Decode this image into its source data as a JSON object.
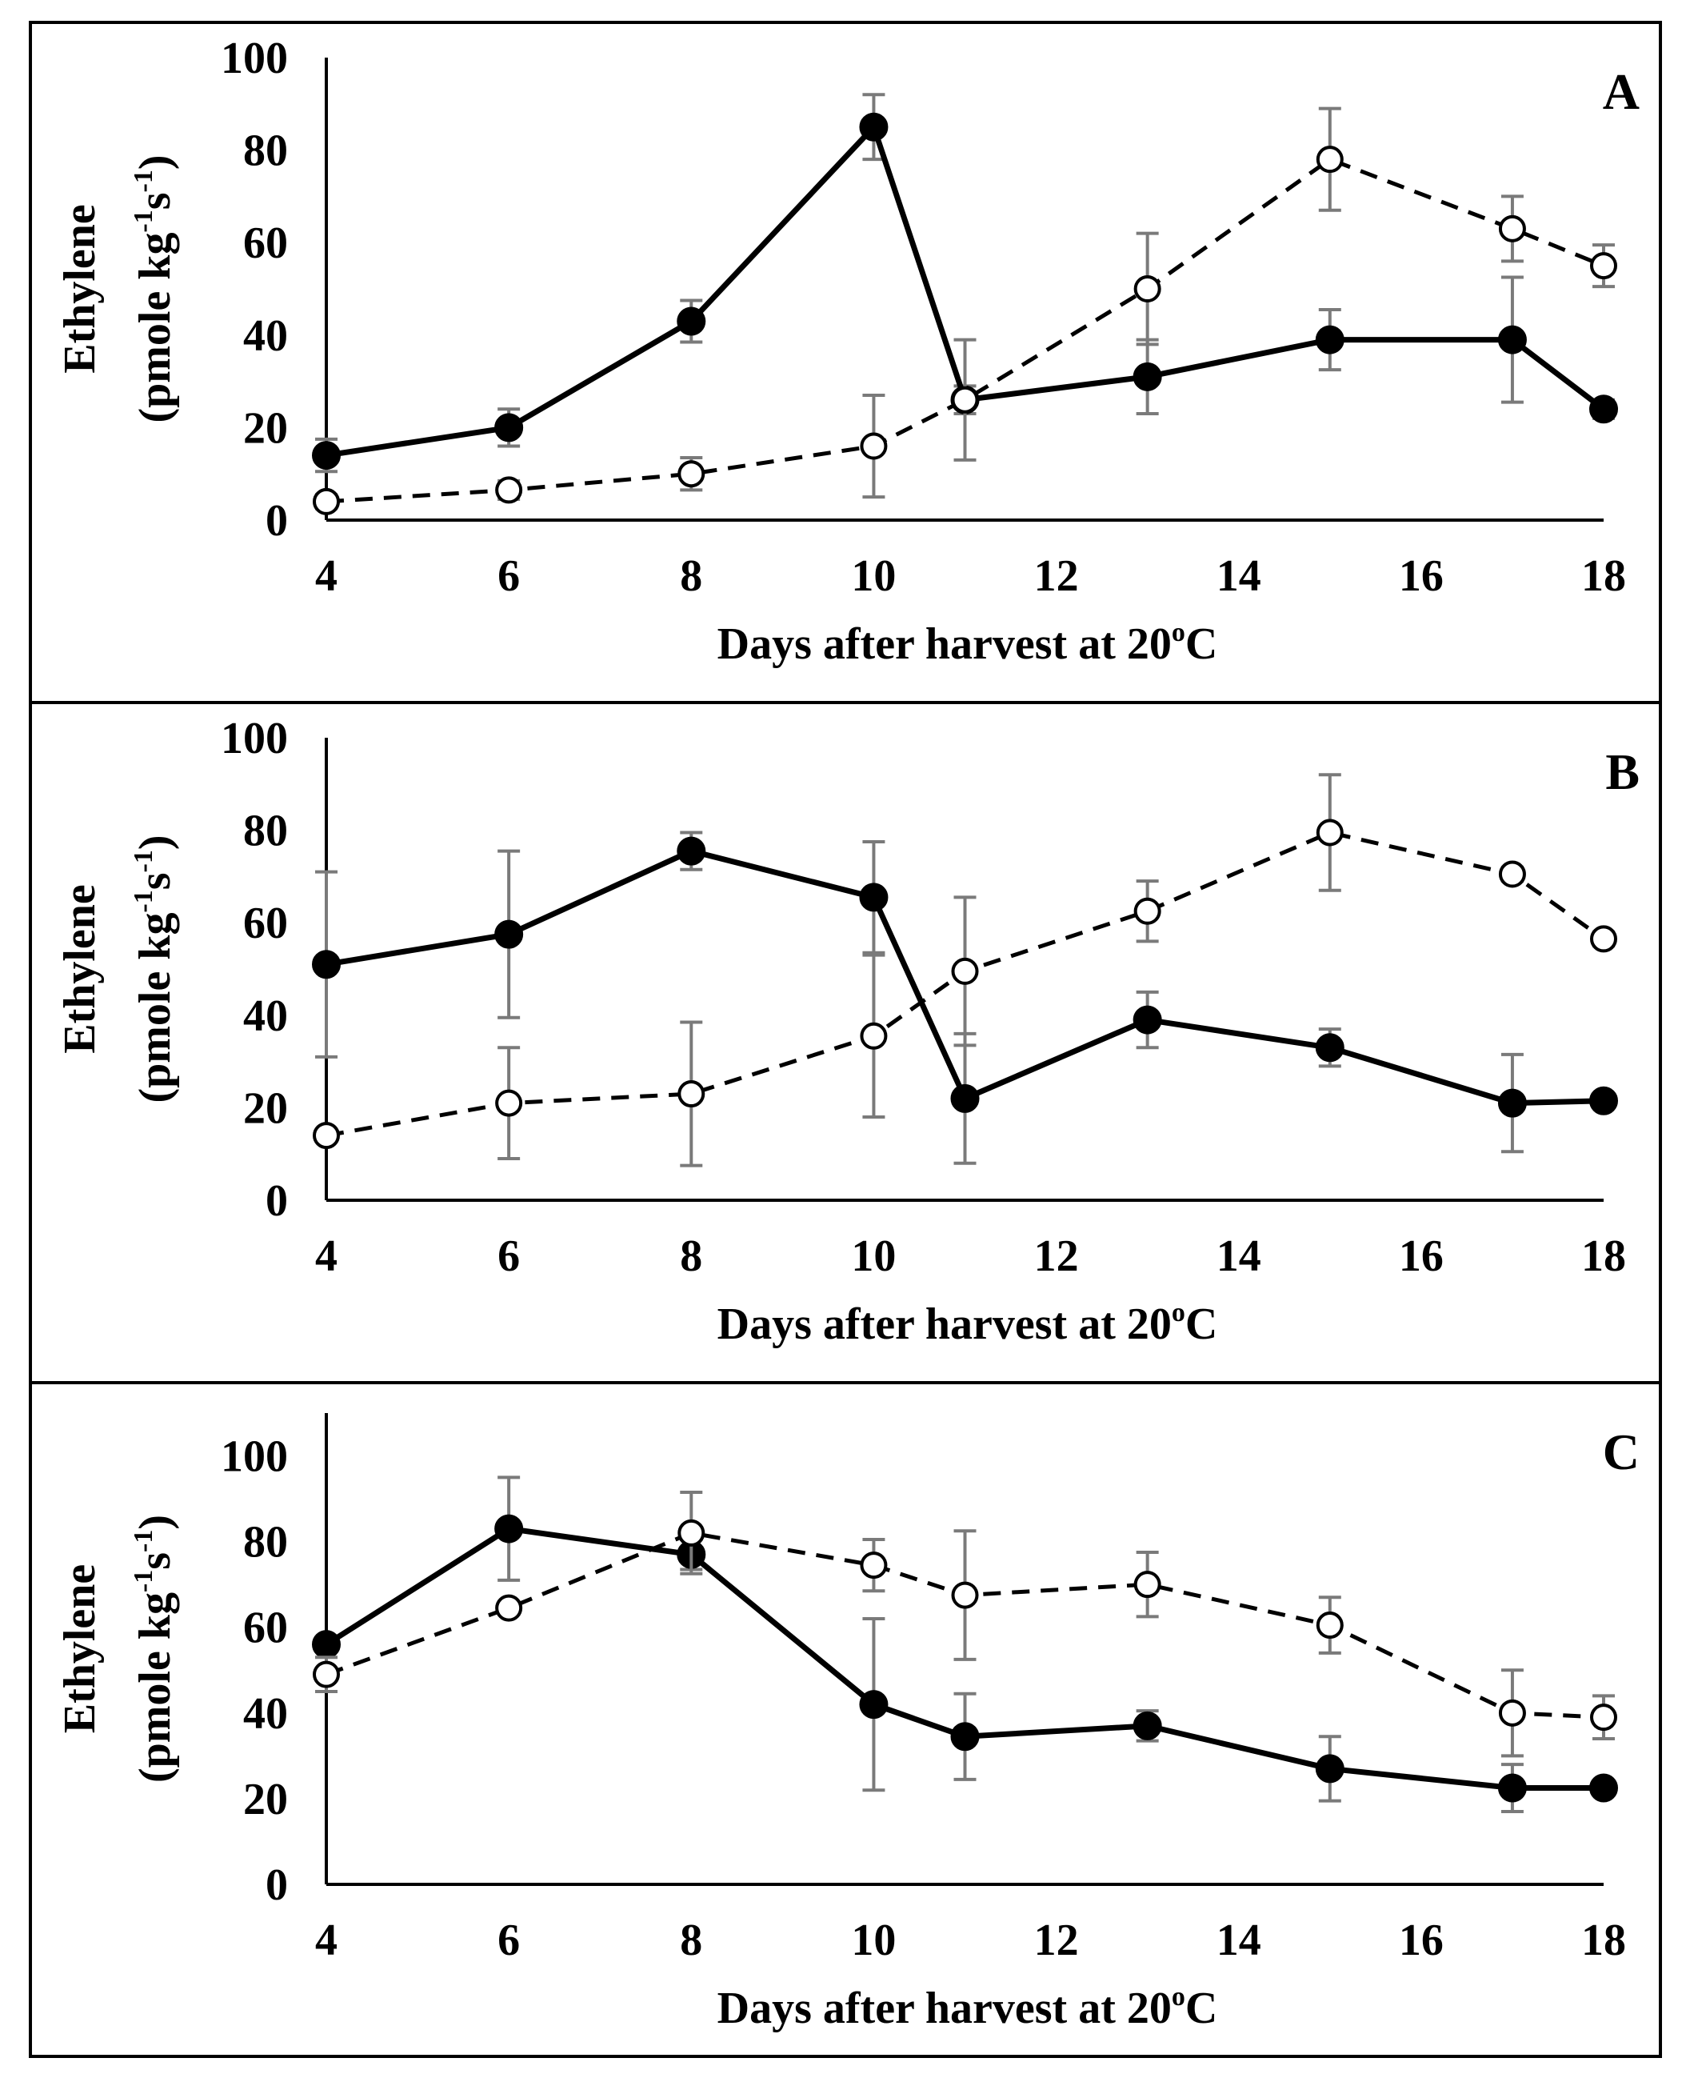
{
  "chart_data": [
    {
      "type": "line",
      "panel": "A",
      "xlabel": "Days after harvest at 20",
      "xlabel_sup": "o",
      "xlabel_tail": "C",
      "ylabel_line1": "Ethylene",
      "ylabel_line2": "(pmole kg-1s-1)",
      "ylabel_parts": [
        "(pmole kg",
        "-1",
        "s",
        "-1",
        ")"
      ],
      "xlim": [
        4,
        18
      ],
      "ylim": [
        0,
        100
      ],
      "xticks": [
        "4",
        "6",
        "8",
        "10",
        "12",
        "14",
        "16",
        "18"
      ],
      "yticks": [
        "0",
        "20",
        "40",
        "60",
        "80",
        "100"
      ],
      "x": [
        4,
        6,
        8,
        10,
        11,
        13,
        15,
        17,
        18
      ],
      "series": [
        {
          "name": "filled",
          "marker": "filled-circle",
          "line": "solid",
          "values": [
            14,
            20,
            43,
            85,
            26,
            31,
            39,
            39,
            24
          ],
          "errors": [
            3.5,
            4,
            4.5,
            7,
            3,
            8,
            6.5,
            13.5,
            2
          ]
        },
        {
          "name": "open",
          "marker": "open-circle",
          "line": "dashed",
          "values": [
            4,
            6.5,
            10,
            16,
            26,
            50,
            78,
            63,
            55
          ],
          "errors": [
            1.5,
            2,
            3.5,
            11,
            13,
            12,
            11,
            7,
            4.5
          ]
        }
      ]
    },
    {
      "type": "line",
      "panel": "B",
      "xlabel": "Days after harvest at 20",
      "xlabel_sup": "o",
      "xlabel_tail": "C",
      "ylabel_line1": "Ethylene",
      "ylabel_line2": "(pmole kg-1s-1)",
      "ylabel_parts": [
        "(pmole kg",
        "-1",
        "s",
        "-1",
        ")"
      ],
      "xlim": [
        4,
        18
      ],
      "ylim": [
        0,
        100
      ],
      "xticks": [
        "4",
        "6",
        "8",
        "10",
        "12",
        "14",
        "16",
        "18"
      ],
      "yticks": [
        "0",
        "20",
        "40",
        "60",
        "80",
        "100"
      ],
      "x": [
        4,
        6,
        8,
        10,
        11,
        13,
        15,
        17,
        18
      ],
      "series": [
        {
          "name": "filled",
          "marker": "filled-circle",
          "line": "solid",
          "values": [
            51,
            57.5,
            75.5,
            65.5,
            22,
            39,
            33,
            21,
            21.5
          ],
          "errors": [
            20,
            18,
            4,
            12,
            14,
            6,
            4,
            10.5,
            1
          ]
        },
        {
          "name": "open",
          "marker": "open-circle",
          "line": "dashed",
          "values": [
            14,
            21,
            23,
            35.5,
            49.5,
            62.5,
            79.5,
            70.5,
            56.5
          ],
          "errors": [
            1,
            12,
            15.5,
            17.5,
            16,
            6.5,
            12.5,
            1.5,
            1.5
          ]
        }
      ]
    },
    {
      "type": "line",
      "panel": "C",
      "xlabel": "Days after harvest at 20",
      "xlabel_sup": "o",
      "xlabel_tail": "C",
      "ylabel_line1": "Ethylene",
      "ylabel_line2": "(pmole kg-1s-1)",
      "ylabel_parts": [
        "(pmole kg",
        "-1",
        "s",
        "-1",
        ")"
      ],
      "xlim": [
        4,
        18
      ],
      "ylim": [
        0,
        110
      ],
      "xticks": [
        "4",
        "6",
        "8",
        "10",
        "12",
        "14",
        "16",
        "18"
      ],
      "yticks": [
        "0",
        "20",
        "40",
        "60",
        "80",
        "100"
      ],
      "x": [
        4,
        6,
        8,
        10,
        11,
        13,
        15,
        17,
        18
      ],
      "series": [
        {
          "name": "filled",
          "marker": "filled-circle",
          "line": "solid",
          "values": [
            56,
            83,
            77,
            42,
            34.5,
            37,
            27,
            22.5,
            22.5
          ],
          "errors": [
            1.5,
            12,
            3.5,
            20,
            10,
            3.5,
            7.5,
            5.5,
            1
          ]
        },
        {
          "name": "open",
          "marker": "open-circle",
          "line": "dashed",
          "values": [
            49,
            64.5,
            82,
            74.5,
            67.5,
            70,
            60.5,
            40,
            39
          ],
          "errors": [
            4,
            1.5,
            9.5,
            6,
            15,
            7.5,
            6.5,
            10,
            5
          ]
        }
      ]
    }
  ]
}
